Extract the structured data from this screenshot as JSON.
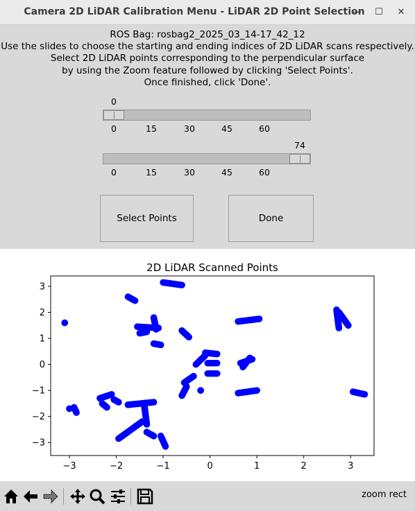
{
  "window": {
    "title": "Camera 2D LiDAR Calibration Menu - LiDAR 2D Point Selection",
    "minimize_glyph": "—",
    "maximize_glyph": "☐",
    "close_glyph": "✕"
  },
  "instructions": {
    "line1": "ROS Bag: rosbag2_2025_03_14-17_42_12",
    "line2": "Use the slides to choose the starting and ending indices of 2D LiDAR scans respectively.",
    "line3": "Select 2D LiDAR points corresponding to the perpendicular surface",
    "line4": "by using the Zoom feature followed by clicking 'Select Points'.",
    "line5": "Once finished, click 'Done'."
  },
  "sliders": {
    "start": {
      "value": "0",
      "fraction": 0.0,
      "ticks": [
        "0",
        "15",
        "30",
        "45",
        "60"
      ]
    },
    "end": {
      "value": "74",
      "fraction": 1.0,
      "ticks": [
        "0",
        "15",
        "30",
        "45",
        "60"
      ]
    }
  },
  "buttons": {
    "select_points": "Select Points",
    "done": "Done"
  },
  "chart_data": {
    "type": "scatter",
    "title": "2D LiDAR Scanned Points",
    "xlabel": "",
    "ylabel": "",
    "xlim": [
      -3.4,
      3.5
    ],
    "ylim": [
      -3.5,
      3.4
    ],
    "xticks": [
      -3,
      -2,
      -1,
      0,
      1,
      2,
      3
    ],
    "yticks": [
      -3,
      -2,
      -1,
      0,
      1,
      2,
      3
    ],
    "grid": false,
    "color": "#0000ff",
    "segments": [
      [
        [
          -1.0,
          3.15
        ],
        [
          -0.6,
          3.05
        ]
      ],
      [
        [
          -1.75,
          2.6
        ],
        [
          -1.6,
          2.45
        ]
      ],
      [
        [
          -3.1,
          1.6
        ],
        [
          -3.1,
          1.6
        ]
      ],
      [
        [
          -1.55,
          1.45
        ],
        [
          -1.1,
          1.4
        ]
      ],
      [
        [
          -1.2,
          1.8
        ],
        [
          -1.15,
          1.35
        ]
      ],
      [
        [
          -1.5,
          1.2
        ],
        [
          -1.35,
          1.25
        ]
      ],
      [
        [
          -1.2,
          0.8
        ],
        [
          -1.05,
          0.75
        ]
      ],
      [
        [
          -0.6,
          1.3
        ],
        [
          -0.45,
          1.05
        ]
      ],
      [
        [
          0.6,
          1.65
        ],
        [
          1.05,
          1.75
        ]
      ],
      [
        [
          2.75,
          2.0
        ],
        [
          2.95,
          1.5
        ]
      ],
      [
        [
          2.7,
          2.1
        ],
        [
          2.75,
          1.4
        ]
      ],
      [
        [
          -0.3,
          0.0
        ],
        [
          -0.1,
          0.35
        ]
      ],
      [
        [
          -0.1,
          0.45
        ],
        [
          0.15,
          0.4
        ]
      ],
      [
        [
          -0.05,
          0.05
        ],
        [
          0.15,
          0.05
        ]
      ],
      [
        [
          -0.05,
          -0.35
        ],
        [
          0.15,
          -0.35
        ]
      ],
      [
        [
          0.65,
          0.05
        ],
        [
          0.9,
          0.2
        ]
      ],
      [
        [
          0.7,
          -0.1
        ],
        [
          0.85,
          0.25
        ]
      ],
      [
        [
          -0.55,
          -0.7
        ],
        [
          -0.35,
          -0.45
        ]
      ],
      [
        [
          -0.6,
          -1.2
        ],
        [
          -0.5,
          -0.85
        ]
      ],
      [
        [
          -0.2,
          -1.0
        ],
        [
          -0.2,
          -1.0
        ]
      ],
      [
        [
          0.6,
          -1.1
        ],
        [
          1.0,
          -1.0
        ]
      ],
      [
        [
          3.05,
          -1.05
        ],
        [
          3.3,
          -1.15
        ]
      ],
      [
        [
          -2.35,
          -1.3
        ],
        [
          -2.1,
          -1.15
        ]
      ],
      [
        [
          -2.3,
          -1.5
        ],
        [
          -2.2,
          -1.65
        ]
      ],
      [
        [
          -2.05,
          -1.35
        ],
        [
          -1.95,
          -1.45
        ]
      ],
      [
        [
          -1.75,
          -1.55
        ],
        [
          -1.2,
          -1.45
        ]
      ],
      [
        [
          -1.4,
          -1.6
        ],
        [
          -1.35,
          -2.3
        ]
      ],
      [
        [
          -1.95,
          -2.85
        ],
        [
          -1.45,
          -2.2
        ]
      ],
      [
        [
          -1.35,
          -2.6
        ],
        [
          -1.2,
          -2.75
        ]
      ],
      [
        [
          -1.05,
          -2.75
        ],
        [
          -0.95,
          -3.15
        ]
      ],
      [
        [
          -2.9,
          -1.65
        ],
        [
          -2.85,
          -1.85
        ]
      ],
      [
        [
          -3.0,
          -1.7
        ],
        [
          -3.0,
          -1.7
        ]
      ]
    ]
  },
  "toolbar": {
    "home_icon": "home-icon",
    "back_icon": "back-arrow-icon",
    "forward_icon": "forward-arrow-icon",
    "pan_icon": "pan-icon",
    "zoom_icon": "zoom-icon",
    "configure_icon": "configure-subplots-icon",
    "save_icon": "save-icon",
    "status": "zoom rect"
  }
}
